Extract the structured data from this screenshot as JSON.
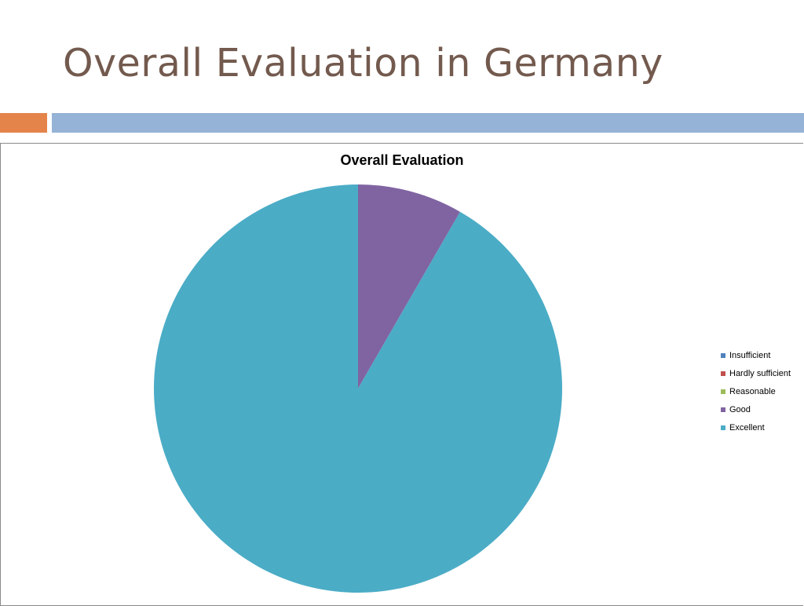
{
  "slide": {
    "title": "Overall Evaluation in Germany"
  },
  "colors": {
    "title_text": "#735a4e",
    "accent_orange": "#e4844a",
    "accent_blue": "#95b3d6"
  },
  "chart_data": {
    "type": "pie",
    "title": "Overall Evaluation",
    "legend_position": "right",
    "categories": [
      "Insufficient",
      "Hardly sufficient",
      "Reasonable",
      "Good",
      "Excellent"
    ],
    "values": [
      0,
      0,
      0,
      1,
      11
    ],
    "colors": [
      "#4f81bd",
      "#c0504d",
      "#9bbb59",
      "#8064a2",
      "#4bacc6"
    ],
    "start_angle_deg": 0,
    "direction": "clockwise"
  }
}
